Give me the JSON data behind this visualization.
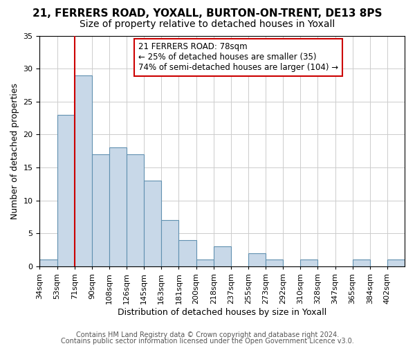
{
  "title": "21, FERRERS ROAD, YOXALL, BURTON-ON-TRENT, DE13 8PS",
  "subtitle": "Size of property relative to detached houses in Yoxall",
  "xlabel": "Distribution of detached houses by size in Yoxall",
  "ylabel": "Number of detached properties",
  "footer_line1": "Contains HM Land Registry data © Crown copyright and database right 2024.",
  "footer_line2": "Contains public sector information licensed under the Open Government Licence v3.0.",
  "bin_labels": [
    "34sqm",
    "53sqm",
    "71sqm",
    "90sqm",
    "108sqm",
    "126sqm",
    "145sqm",
    "163sqm",
    "181sqm",
    "200sqm",
    "218sqm",
    "237sqm",
    "255sqm",
    "273sqm",
    "292sqm",
    "310sqm",
    "328sqm",
    "347sqm",
    "365sqm",
    "384sqm",
    "402sqm"
  ],
  "bar_values": [
    1,
    23,
    29,
    17,
    18,
    17,
    13,
    7,
    4,
    1,
    3,
    0,
    2,
    1,
    0,
    1,
    0,
    0,
    1,
    0,
    1
  ],
  "bar_color": "#c8d8e8",
  "bar_edge_color": "#6090b0",
  "vline_x": 2,
  "vline_color": "#cc0000",
  "annotation_text_line1": "21 FERRERS ROAD: 78sqm",
  "annotation_text_line2": "← 25% of detached houses are smaller (35)",
  "annotation_text_line3": "74% of semi-detached houses are larger (104) →",
  "box_edge_color": "#cc0000",
  "ylim": [
    0,
    35
  ],
  "yticks": [
    0,
    5,
    10,
    15,
    20,
    25,
    30,
    35
  ],
  "bg_color": "#ffffff",
  "grid_color": "#cccccc",
  "title_fontsize": 11,
  "subtitle_fontsize": 10,
  "axis_label_fontsize": 9,
  "tick_fontsize": 8,
  "annotation_fontsize": 8.5,
  "footer_fontsize": 7
}
